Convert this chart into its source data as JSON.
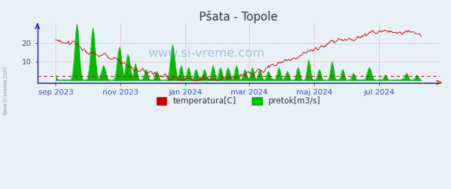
{
  "title": "Pšata - Topole",
  "title_color": "#333333",
  "title_fontsize": 12,
  "bg_color": "#e8f0f8",
  "plot_bg_color": "#e8f0f8",
  "temp_color": "#cc0000",
  "flow_color": "#00bb00",
  "avg_line_color": "#cc0000",
  "avg_line_y": 2.5,
  "grid_color": "#dd8888",
  "grid_color_x": "#cc8888",
  "watermark": "www.si-vreme.com",
  "legend": [
    {
      "label": "temperatura[C]",
      "color": "#cc0000"
    },
    {
      "label": "pretok[m3/s]",
      "color": "#00bb00"
    }
  ],
  "yticks": [
    10,
    20
  ],
  "ymax": 30,
  "ymin": -1,
  "xticklabels": [
    "sep 2023",
    "nov 2023",
    "jan 2024",
    "mar 2024",
    "maj 2024",
    "jul 2024"
  ],
  "left_text": "www.si-vreme.com",
  "figsize": [
    6.59,
    2.76
  ],
  "dpi": 100
}
